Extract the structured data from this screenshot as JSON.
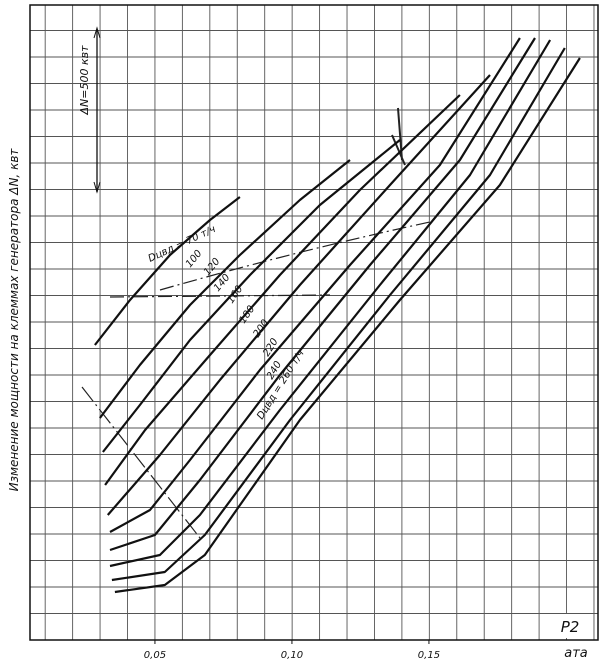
{
  "chart_data": {
    "type": "line",
    "ylabel": "Изменение мощности на клеммах генератора ΔN, квт",
    "scale_note": "ΔN=500 квт",
    "xlabel": "P2",
    "xunit": "ата",
    "xlim": [
      0.0044,
      0.2117
    ],
    "ylim": [
      0,
      1905
    ],
    "xticks": [
      {
        "value": 0.05,
        "label": "0,05"
      },
      {
        "value": 0.1,
        "label": "0,10"
      },
      {
        "value": 0.15,
        "label": "0,15"
      }
    ],
    "color": "#111111",
    "series": [
      {
        "name": "Dцвд = 70 т/ч",
        "x": [
          0.0281,
          0.0409,
          0.0555,
          0.0701,
          0.081
        ],
        "values": [
          885,
          1020,
          1155,
          1260,
          1329
        ]
      },
      {
        "name": "100",
        "x": [
          0.0299,
          0.0445,
          0.0628,
          0.081,
          0.1029,
          0.1212
        ],
        "values": [
          666,
          825,
          1005,
          1155,
          1320,
          1440
        ]
      },
      {
        "name": "120",
        "x": [
          0.031,
          0.0445,
          0.0628,
          0.0847,
          0.1102,
          0.1394
        ],
        "values": [
          564,
          705,
          900,
          1095,
          1305,
          1500
        ]
      },
      {
        "name": "140",
        "x": [
          0.0318,
          0.0464,
          0.0701,
          0.0956,
          0.1248,
          0.1613
        ],
        "values": [
          465,
          630,
          855,
          1095,
          1350,
          1635
        ]
      },
      {
        "name": "160",
        "x": [
          0.0328,
          0.0518,
          0.0737,
          0.1029,
          0.1358,
          0.1723
        ],
        "values": [
          375,
          555,
          780,
          1065,
          1365,
          1695
        ]
      },
      {
        "name": "180",
        "x": [
          0.0336,
          0.0482,
          0.0628,
          0.0883,
          0.1212,
          0.154,
          0.1832
        ],
        "values": [
          324,
          390,
          540,
          810,
          1125,
          1425,
          1806
        ]
      },
      {
        "name": "200",
        "x": [
          0.0336,
          0.05,
          0.0664,
          0.0956,
          0.1285,
          0.1613,
          0.1887
        ],
        "values": [
          270,
          315,
          480,
          795,
          1125,
          1440,
          1806
        ]
      },
      {
        "name": "220",
        "x": [
          0.0336,
          0.0518,
          0.0664,
          0.0956,
          0.1321,
          0.165,
          0.1942
        ],
        "values": [
          222,
          255,
          375,
          690,
          1065,
          1395,
          1800
        ]
      },
      {
        "name": "240",
        "x": [
          0.0343,
          0.0536,
          0.0682,
          0.0993,
          0.1358,
          0.1723,
          0.1996
        ],
        "values": [
          180,
          204,
          315,
          660,
          1035,
          1395,
          1776
        ]
      },
      {
        "name": "Dцвд = 260 т/ч",
        "x": [
          0.0354,
          0.0536,
          0.0682,
          0.1029,
          0.1394,
          0.1759,
          0.2051
        ],
        "values": [
          144,
          165,
          255,
          660,
          1020,
          1365,
          1746
        ]
      }
    ]
  }
}
